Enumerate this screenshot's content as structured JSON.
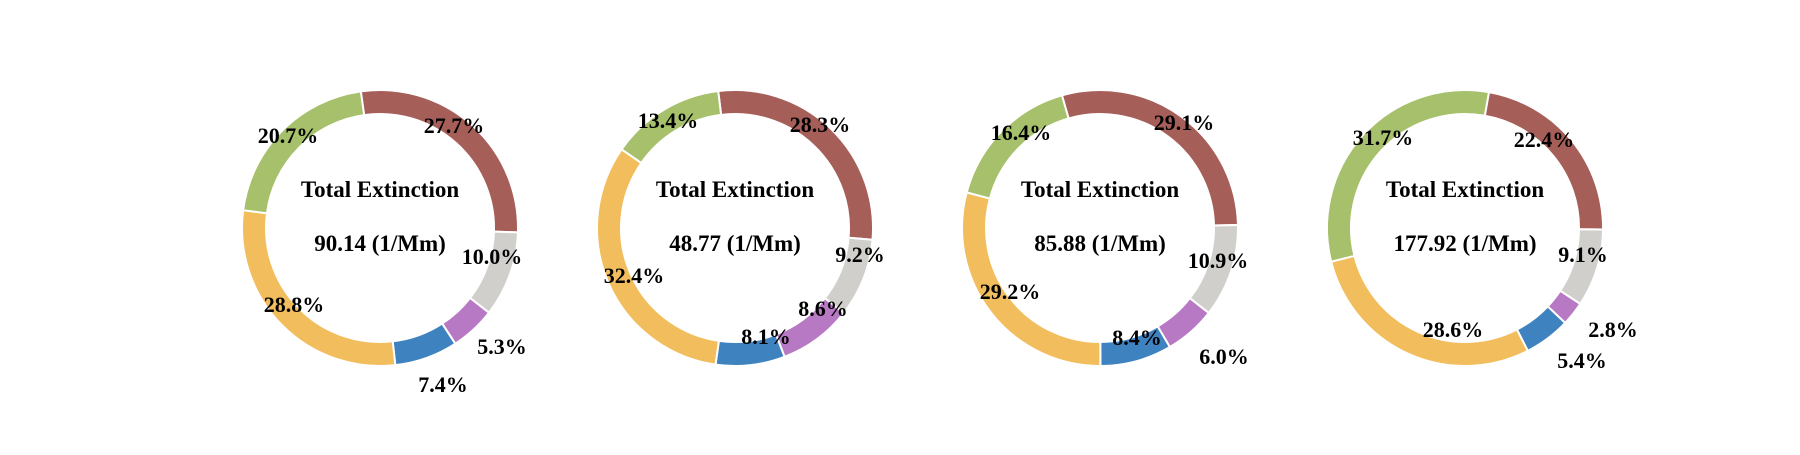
{
  "colors": {
    "red": "#a65e58",
    "gray": "#d0cfcb",
    "purple": "#b879c4",
    "blue": "#3e83c0",
    "yellow": "#f2bd5c",
    "green": "#a6c06b"
  },
  "chart_data": [
    {
      "type": "pie",
      "donut": true,
      "center_title": "Total Extinction",
      "center_value": "90.14 (1/Mm)",
      "slices": [
        {
          "color": "red",
          "value": 27.7,
          "label": "27.7%"
        },
        {
          "color": "gray",
          "value": 10.0,
          "label": "10.0%"
        },
        {
          "color": "purple",
          "value": 5.3,
          "label": "5.3%"
        },
        {
          "color": "blue",
          "value": 7.4,
          "label": "7.4%"
        },
        {
          "color": "yellow",
          "value": 28.8,
          "label": "28.8%"
        },
        {
          "color": "green",
          "value": 20.7,
          "label": "20.7%"
        }
      ]
    },
    {
      "type": "pie",
      "donut": true,
      "center_title": "Total Extinction",
      "center_value": "48.77 (1/Mm)",
      "slices": [
        {
          "color": "red",
          "value": 28.3,
          "label": "28.3%"
        },
        {
          "color": "gray",
          "value": 9.2,
          "label": "9.2%"
        },
        {
          "color": "purple",
          "value": 8.6,
          "label": "8.6%"
        },
        {
          "color": "blue",
          "value": 8.1,
          "label": "8.1%"
        },
        {
          "color": "yellow",
          "value": 32.4,
          "label": "32.4%"
        },
        {
          "color": "green",
          "value": 13.4,
          "label": "13.4%"
        }
      ]
    },
    {
      "type": "pie",
      "donut": true,
      "center_title": "Total Extinction",
      "center_value": "85.88 (1/Mm)",
      "slices": [
        {
          "color": "red",
          "value": 29.1,
          "label": "29.1%"
        },
        {
          "color": "gray",
          "value": 10.9,
          "label": "10.9%"
        },
        {
          "color": "purple",
          "value": 6.0,
          "label": "6.0%"
        },
        {
          "color": "blue",
          "value": 8.4,
          "label": "8.4%"
        },
        {
          "color": "yellow",
          "value": 29.2,
          "label": "29.2%"
        },
        {
          "color": "green",
          "value": 16.4,
          "label": "16.4%"
        }
      ]
    },
    {
      "type": "pie",
      "donut": true,
      "center_title": "Total Extinction",
      "center_value": "177.92 (1/Mm)",
      "slices": [
        {
          "color": "red",
          "value": 22.4,
          "label": "22.4%"
        },
        {
          "color": "gray",
          "value": 9.1,
          "label": "9.1%"
        },
        {
          "color": "purple",
          "value": 2.8,
          "label": "2.8%"
        },
        {
          "color": "blue",
          "value": 5.4,
          "label": "5.4%"
        },
        {
          "color": "yellow",
          "value": 28.6,
          "label": "28.6%"
        },
        {
          "color": "green",
          "value": 31.7,
          "label": "31.7%"
        }
      ]
    }
  ]
}
